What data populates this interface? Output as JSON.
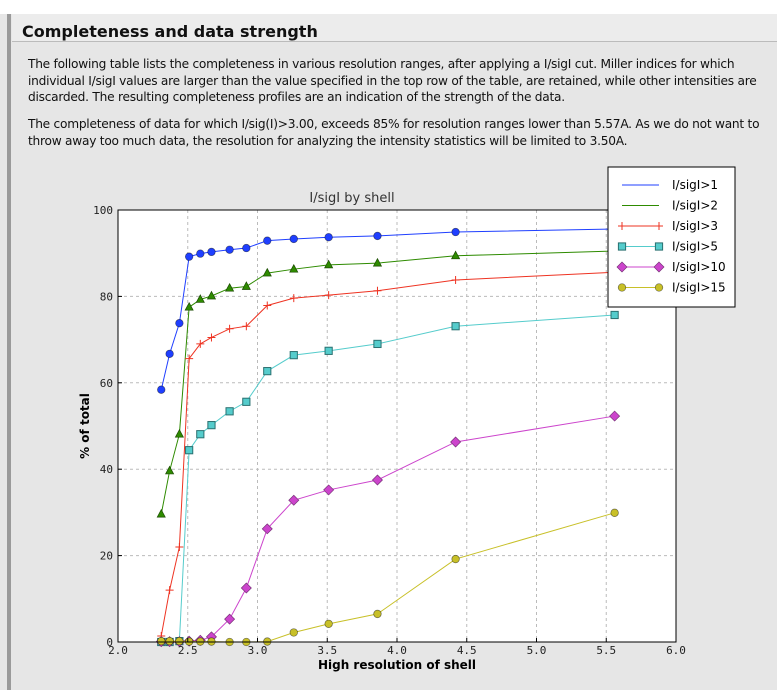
{
  "section": {
    "title": "Completeness and data strength",
    "paragraph1": "The following table lists the completeness in various resolution ranges, after applying a I/sigI cut. Miller indices for which individual I/sigI values are larger than the value specified in the top row of the table, are retained, while other intensities are discarded. The resulting completeness profiles are an indication of the strength of the data.",
    "paragraph2": "The completeness of data for which I/sig(I)>3.00, exceeds  85% for resolution ranges lower than 5.57A. As we do not want to throw away too much data, the resolution for analyzing the intensity statistics will be limited to 3.50A."
  },
  "chart_data": {
    "type": "line",
    "title": "I/sigI by shell",
    "xlabel": "High resolution of shell",
    "ylabel": "% of total",
    "xlim": [
      2.0,
      6.0
    ],
    "ylim": [
      0,
      100
    ],
    "xticks": [
      "2.0",
      "2.5",
      "3.0",
      "3.5",
      "4.0",
      "4.5",
      "5.0",
      "5.5",
      "6.0"
    ],
    "yticks": [
      "0",
      "20",
      "40",
      "60",
      "80",
      "100"
    ],
    "grid": true,
    "legend_position": "top-right",
    "x": [
      2.31,
      2.37,
      2.44,
      2.51,
      2.59,
      2.67,
      2.8,
      2.92,
      3.07,
      3.26,
      3.51,
      3.86,
      4.42,
      5.56
    ],
    "series": [
      {
        "name": "I/sigI>1",
        "color": "#1f3fff",
        "marker": "circle",
        "legend_marker": "none",
        "values": [
          58.4,
          66.7,
          73.8,
          89.2,
          89.9,
          90.3,
          90.8,
          91.2,
          92.9,
          93.3,
          93.7,
          94.0,
          94.9,
          95.6
        ]
      },
      {
        "name": "I/sigI>2",
        "color": "#2e8b00",
        "marker": "triangle",
        "legend_marker": "none",
        "values": [
          29.6,
          39.6,
          48.1,
          77.5,
          79.3,
          80.1,
          81.9,
          82.3,
          85.4,
          86.3,
          87.3,
          87.7,
          89.4,
          90.5
        ]
      },
      {
        "name": "I/sigI>3",
        "color": "#ee3322",
        "marker": "plus",
        "legend_marker": "plus",
        "values": [
          1.4,
          12.0,
          22.0,
          65.6,
          69.0,
          70.5,
          72.5,
          73.1,
          77.9,
          79.6,
          80.3,
          81.3,
          83.8,
          85.6
        ]
      },
      {
        "name": "I/sigI>5",
        "color": "#55cccc",
        "marker": "square",
        "legend_marker": "square",
        "values": [
          0.0,
          0.0,
          0.2,
          44.4,
          48.1,
          50.2,
          53.4,
          55.6,
          62.7,
          66.4,
          67.4,
          69.0,
          73.1,
          75.7
        ]
      },
      {
        "name": "I/sigI>10",
        "color": "#cc44cc",
        "marker": "diamond",
        "legend_marker": "diamond",
        "values": [
          0.1,
          0.1,
          0.1,
          0.2,
          0.4,
          1.2,
          5.3,
          12.5,
          26.2,
          32.8,
          35.2,
          37.5,
          46.3,
          52.3
        ]
      },
      {
        "name": "I/sigI>15",
        "color": "#c8c028",
        "marker": "circle",
        "legend_marker": "circle",
        "values": [
          0.2,
          0.2,
          0.2,
          0.1,
          0.1,
          0.1,
          0.0,
          0.0,
          0.1,
          2.2,
          4.2,
          6.5,
          19.2,
          29.9
        ]
      }
    ]
  }
}
